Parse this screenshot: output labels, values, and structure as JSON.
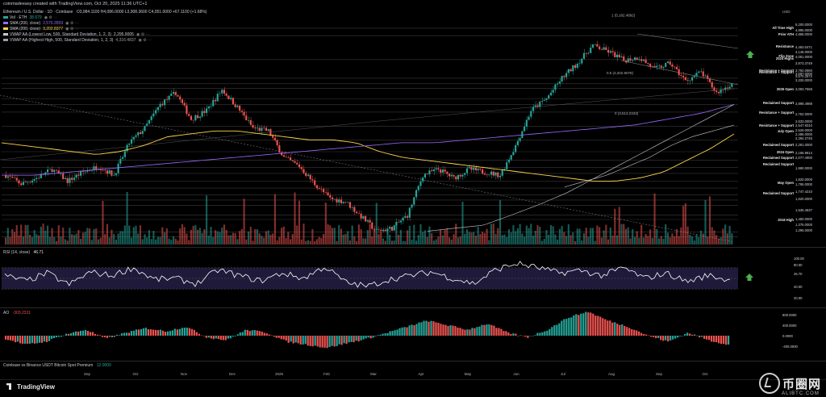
{
  "topbar": {
    "text": "coinmadeeasy created with TradingView.com, Oct 20, 2025 11:36 UTC+1"
  },
  "header": {
    "symbol": "Ethereum / U.S. Dollar · 1D · Coinbase",
    "ohlc": "O3,984.1100 H4,086.0000 L3,908.3600 C4,051.0000 +67.1100 (+1.68%)",
    "indicators": [
      {
        "label": "Vol · ETH",
        "value": "38.679",
        "color": "#26a69a"
      },
      {
        "label": "SMA (200, close)",
        "value": "2,570.3559",
        "color": "#9b6cff"
      },
      {
        "label": "SMA (200, close)",
        "value": "3,202.8377",
        "color": "#ffd54a"
      },
      {
        "label": "VWAP AA (Lowest Low, 500, Standard Deviation, 1, 2, 3)",
        "value": "2,295.9005",
        "color": "#c8c8c8"
      },
      {
        "label": "VWAP AA (Highest High, 500, Standard Deviation, 1, 2, 3)",
        "value": "4,316.4837",
        "color": "#9aa0a6"
      }
    ]
  },
  "rsi_pane": {
    "title": "RSI (14, close)",
    "value": "46.71",
    "current_label": "46.70"
  },
  "ao_pane": {
    "title": "AO",
    "value": "-303.2311"
  },
  "premium_pane": {
    "title": "Coinbase vs Binance USDT Bitcoin Spot Premium",
    "value": "12.0000"
  },
  "price_axis": {
    "currency": "USD",
    "ticks": [
      "5,200.0000",
      "4,995.0000",
      "4,868.0000",
      "4,463.0471",
      "4,146.0000",
      "4,051.0000",
      "3,973.3749",
      "3,792.0960",
      "3,697.0000",
      "3,570.3572",
      "3,330.0000",
      "3,093.7558",
      "2,898.4988",
      "2,752.0000",
      "2,633.0000",
      "2,547.9310",
      "2,529.0000",
      "2,486.0000",
      "2,394.2745",
      "2,281.0000",
      "2,166.9614",
      "2,077.4900",
      "1,990.0000",
      "1,820.0000",
      "1,795.0000",
      "1,747.4210",
      "1,620.0000",
      "1,535.4837",
      "1,450.0000",
      "1,375.0000",
      "1,295.0000"
    ],
    "levels": [
      "All Time High",
      "Prior ATH",
      "Resistance",
      "Flip Zone",
      "2024 Highs",
      "Resistance + Support",
      "Resistance + Support",
      "2025 Open",
      "Reclaimed Support",
      "Resistance + Support",
      "Resistance + Support",
      "July Open",
      "Reclaimed Support",
      "2024 Open",
      "Reclaimed Support",
      "Reclaimed Support",
      "May Open",
      "Reclaimed Support",
      "2018 High"
    ],
    "rsi_ticks": [
      "100.00",
      "80.00",
      "46.70",
      "40.00",
      "20.00"
    ],
    "ao_ticks": [
      "800.0000",
      "400.0000",
      "0.0000",
      "-400.0000"
    ]
  },
  "fib_labels": [
    "1 (5,182.4892)",
    "0.5 (4,202.9078)",
    "0 (3,513.2343)"
  ],
  "months": [
    "Sep",
    "Oct",
    "Nov",
    "Dec",
    "2025",
    "Feb",
    "Mar",
    "Apr",
    "May",
    "Jun",
    "Jul",
    "Aug",
    "Sep",
    "Oct"
  ],
  "brand": {
    "name": "TradingView"
  },
  "watermark": {
    "cn": "币圈网",
    "sub": "ALIBTC.COM"
  },
  "colors": {
    "bull": "#26a69a",
    "bear": "#ef5350",
    "sma1": "#9b6cff",
    "sma2": "#ffd54a",
    "rsi": "#ffffff",
    "arrow": "#4caf50"
  },
  "chart_data": {
    "type": "candlestick",
    "title": "Ethereum / U.S. Dollar · 1D · Coinbase",
    "x_range": [
      "Sep 2024",
      "Oct 2025"
    ],
    "ylim": [
      1295,
      5200
    ],
    "price_path": [
      2500,
      2350,
      2450,
      2600,
      2400,
      2550,
      2650,
      2500,
      3050,
      3300,
      3700,
      3900,
      3450,
      3600,
      3950,
      3650,
      3300,
      3250,
      2800,
      2650,
      2350,
      2100,
      2050,
      1800,
      1550,
      1600,
      1820,
      2500,
      2600,
      2450,
      2600,
      2550,
      2500,
      3000,
      3600,
      3800,
      4150,
      4400,
      4700,
      4600,
      4450,
      4500,
      4300,
      4400,
      4100,
      4250,
      3900,
      4051
    ],
    "sma200_path": [
      3050,
      3000,
      2950,
      2900,
      2850,
      2900,
      3000,
      3150,
      3200,
      3250,
      3250,
      3200,
      3150,
      3100,
      3100,
      3050,
      2900,
      2800,
      2750,
      2700,
      2650,
      2600,
      2550,
      2500,
      2450,
      2400,
      2400,
      2450,
      2550,
      2750,
      2950,
      3200
    ],
    "rsi_path": [
      55,
      45,
      60,
      38,
      62,
      55,
      70,
      48,
      50,
      40,
      66,
      55,
      45,
      60,
      50,
      72,
      42,
      35,
      48,
      55,
      62,
      50,
      40,
      66,
      78,
      70,
      60,
      65,
      55,
      70,
      50,
      60,
      44,
      56,
      46
    ],
    "ao_path": [
      -100,
      -300,
      -200,
      50,
      200,
      -100,
      100,
      250,
      150,
      300,
      -50,
      -150,
      200,
      100,
      -200,
      -300,
      -400,
      -250,
      -100,
      100,
      300,
      500,
      350,
      200,
      400,
      100,
      -50,
      200,
      600,
      800,
      500,
      300,
      0,
      -200,
      100,
      -150,
      -300
    ]
  }
}
